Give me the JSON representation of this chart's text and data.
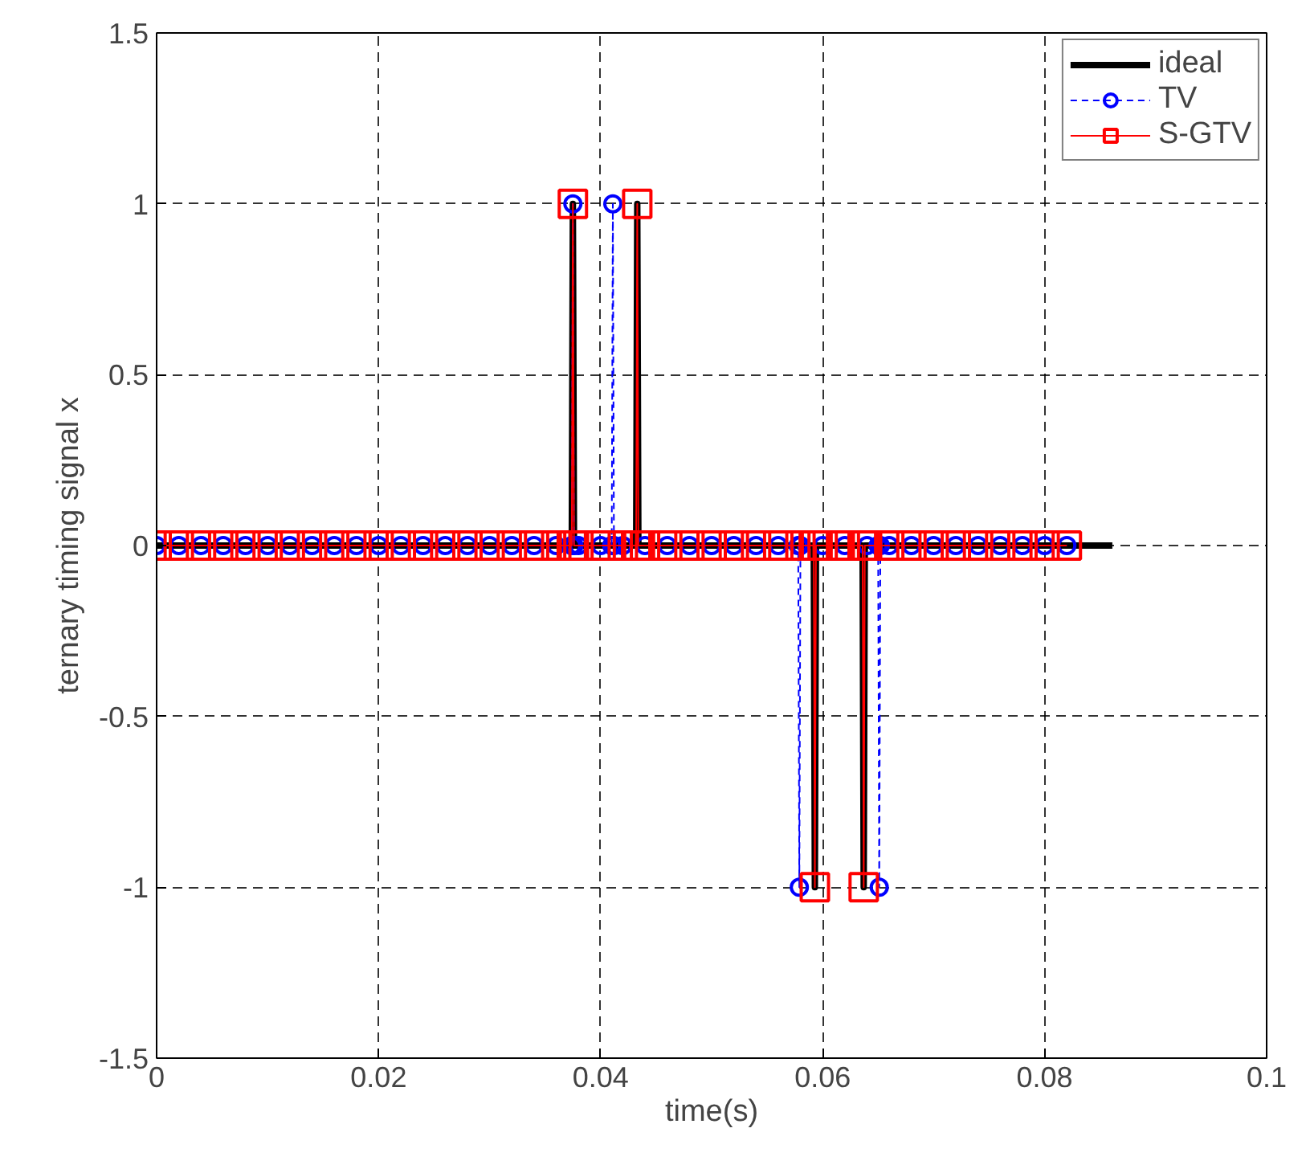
{
  "chart_data": {
    "type": "line",
    "xlabel": "time(s)",
    "ylabel": "ternary timing signal x",
    "xlim": [
      0,
      0.1
    ],
    "ylim": [
      -1.5,
      1.5
    ],
    "xticks": [
      0,
      0.02,
      0.04,
      0.06,
      0.08,
      0.1
    ],
    "yticks": [
      -1.5,
      -1,
      -0.5,
      0,
      0.5,
      1,
      1.5
    ],
    "grid": true,
    "legend": "top right",
    "series": [
      {
        "name": "ideal",
        "color": "#000000",
        "marker": "none",
        "line_style": "solid",
        "x": [
          0,
          0.0374,
          0.0375,
          0.0376,
          0.0432,
          0.0433,
          0.0434,
          0.0592,
          0.0593,
          0.0594,
          0.0636,
          0.0637,
          0.0638,
          0.0861
        ],
        "values": [
          0,
          0,
          1,
          0,
          0,
          1,
          0,
          0,
          -1,
          0,
          0,
          -1,
          0,
          0
        ]
      },
      {
        "name": "TV",
        "color": "#0000ff",
        "marker": "circle",
        "line_style": "dashed",
        "x": [
          0,
          0.002,
          0.004,
          0.006,
          0.008,
          0.01,
          0.012,
          0.014,
          0.016,
          0.018,
          0.02,
          0.022,
          0.024,
          0.026,
          0.028,
          0.03,
          0.032,
          0.034,
          0.036,
          0.0374,
          0.0375,
          0.0376,
          0.038,
          0.04,
          0.041,
          0.0411,
          0.0412,
          0.042,
          0.044,
          0.046,
          0.048,
          0.05,
          0.052,
          0.054,
          0.056,
          0.0578,
          0.0579,
          0.058,
          0.06,
          0.062,
          0.064,
          0.065,
          0.0651,
          0.0652,
          0.066,
          0.068,
          0.07,
          0.072,
          0.074,
          0.076,
          0.078,
          0.08,
          0.082
        ],
        "values": [
          0,
          0,
          0,
          0,
          0,
          0,
          0,
          0,
          0,
          0,
          0,
          0,
          0,
          0,
          0,
          0,
          0,
          0,
          0,
          0,
          1,
          0,
          0,
          0,
          0,
          1,
          0,
          0,
          0,
          0,
          0,
          0,
          0,
          0,
          0,
          0,
          -1,
          0,
          0,
          0,
          0,
          0,
          -1,
          0,
          0,
          0,
          0,
          0,
          0,
          0,
          0,
          0,
          0
        ]
      },
      {
        "name": "S-GTV",
        "color": "#ff0000",
        "marker": "square",
        "line_style": "solid",
        "x": [
          0,
          0.002,
          0.004,
          0.006,
          0.008,
          0.01,
          0.012,
          0.014,
          0.016,
          0.018,
          0.02,
          0.022,
          0.024,
          0.026,
          0.028,
          0.03,
          0.032,
          0.034,
          0.036,
          0.0374,
          0.0375,
          0.0376,
          0.038,
          0.04,
          0.042,
          0.0432,
          0.0433,
          0.0434,
          0.044,
          0.046,
          0.048,
          0.05,
          0.052,
          0.054,
          0.056,
          0.058,
          0.0592,
          0.0593,
          0.0594,
          0.06,
          0.062,
          0.0636,
          0.0637,
          0.0638,
          0.064,
          0.066,
          0.068,
          0.07,
          0.072,
          0.074,
          0.076,
          0.078,
          0.08,
          0.082
        ],
        "values": [
          0,
          0,
          0,
          0,
          0,
          0,
          0,
          0,
          0,
          0,
          0,
          0,
          0,
          0,
          0,
          0,
          0,
          0,
          0,
          0,
          1,
          0,
          0,
          0,
          0,
          0,
          1,
          0,
          0,
          0,
          0,
          0,
          0,
          0,
          0,
          0,
          0,
          -1,
          0,
          0,
          0,
          0,
          -1,
          0,
          0,
          0,
          0,
          0,
          0,
          0,
          0,
          0,
          0,
          0
        ]
      }
    ]
  }
}
